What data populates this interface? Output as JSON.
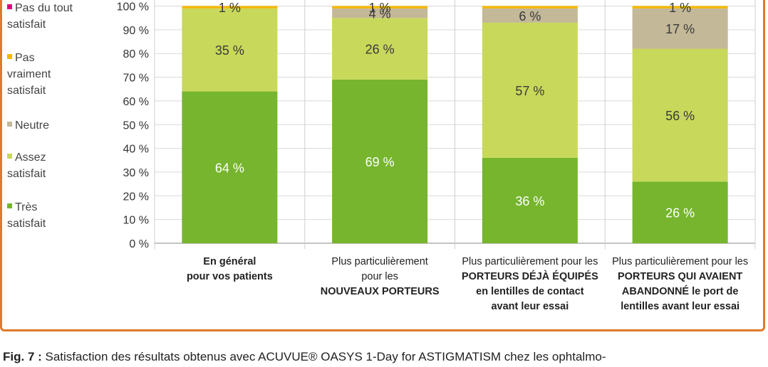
{
  "legend": [
    {
      "label": "Pas du tout\nsatisfait",
      "color": "#e3007e"
    },
    {
      "label": "Pas\nvraiment\nsatisfait",
      "color": "#f5b800"
    },
    {
      "label": "Neutre",
      "color": "#c3b898"
    },
    {
      "label": "Assez\nsatisfait",
      "color": "#c8d85a"
    },
    {
      "label": "Très\nsatisfait",
      "color": "#76b52d"
    }
  ],
  "caption": {
    "prefix": "Fig. 7 :",
    "text": "Satisfaction des résultats obtenus avec ACUVUE® OASYS 1-Day for ASTIGMATISM chez les ophtalmo-"
  },
  "chart_data": {
    "type": "bar",
    "stacked": true,
    "ylim": [
      0,
      100
    ],
    "yticks": [
      "0 %",
      "10 %",
      "20 %",
      "30 %",
      "40 %",
      "50 %",
      "60 %",
      "70 %",
      "80 %",
      "90 %",
      "100 %"
    ],
    "categories": [
      [
        {
          "t": "En général",
          "b": true
        },
        {
          "t": "pour vos patients",
          "b": true
        }
      ],
      [
        {
          "t": "Plus particulièrement",
          "b": false
        },
        {
          "t": "pour les",
          "b": false
        },
        {
          "t": "NOUVEAUX PORTEURS",
          "b": true
        }
      ],
      [
        {
          "t": "Plus particulièrement pour les",
          "b": false
        },
        {
          "t": "PORTEURS DÉJÀ ÉQUIPÉS",
          "b": true
        },
        {
          "t": "en lentilles de contact",
          "b": true
        },
        {
          "t": "avant leur essai",
          "b": true
        }
      ],
      [
        {
          "t": "Plus particulièrement pour les",
          "b": false
        },
        {
          "t": "PORTEURS QUI AVAIENT",
          "b": true
        },
        {
          "t": "ABANDONNÉ le port de",
          "b": true
        },
        {
          "t": "lentilles avant leur essai",
          "b": true
        }
      ]
    ],
    "series": [
      {
        "name": "Très satisfait",
        "color": "#76b52d",
        "values": [
          64,
          69,
          36,
          26
        ],
        "labels": [
          "64 %",
          "69 %",
          "36 %",
          "26 %"
        ],
        "label_color": "#ffffff"
      },
      {
        "name": "Assez satisfait",
        "color": "#c8d85a",
        "values": [
          35,
          26,
          57,
          56
        ],
        "labels": [
          "35 %",
          "26 %",
          "57 %",
          "56 %"
        ],
        "label_color": "#3a3a3a"
      },
      {
        "name": "Neutre",
        "color": "#c3b898",
        "values": [
          0,
          4,
          6,
          17
        ],
        "labels": [
          "",
          "4 %",
          "6 %",
          "17 %"
        ],
        "label_color": "#3a3a3a"
      },
      {
        "name": "Pas vraiment satisfait",
        "color": "#f5b800",
        "values": [
          1,
          1,
          1,
          1
        ],
        "labels": [
          "1 %",
          "1 %",
          "",
          "1 %"
        ],
        "label_color": "#3a3a3a"
      },
      {
        "name": "Pas du tout satisfait",
        "color": "#e3007e",
        "values": [
          0,
          0,
          0,
          0
        ],
        "labels": [
          "",
          "",
          "",
          ""
        ],
        "label_color": "#3a3a3a"
      }
    ]
  }
}
